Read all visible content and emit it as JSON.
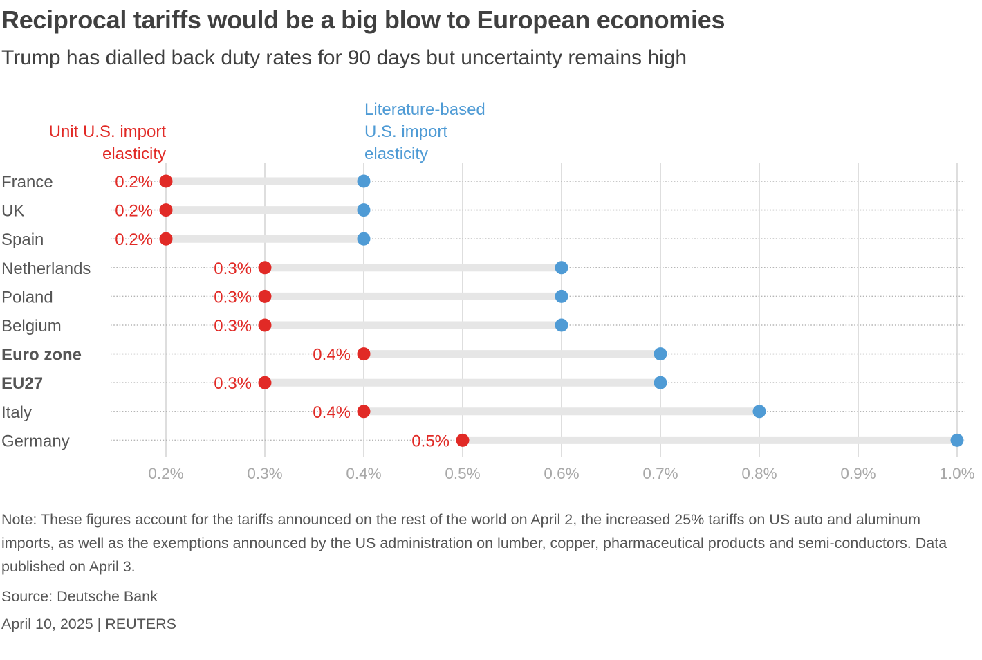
{
  "header": {
    "title": "Reciprocal tariffs would be a big blow to European economies",
    "subtitle": "Trump has dialled back duty rates for 90 days but uncertainty remains high"
  },
  "colors": {
    "unit": "#e12a26",
    "literature": "#4f9bd5",
    "range_band": "#e6e6e6",
    "gridline": "#c8c8c8",
    "row_dots": "#b5b5b5",
    "tick_text": "#a8a8a8",
    "label_text": "#555555"
  },
  "chart_data": {
    "type": "dumbbell",
    "x_axis": {
      "ticks": [
        0.2,
        0.3,
        0.4,
        0.5,
        0.6,
        0.7,
        0.8,
        0.9,
        1.0
      ],
      "tick_labels": [
        "0.2%",
        "0.3%",
        "0.4%",
        "0.5%",
        "0.6%",
        "0.7%",
        "0.8%",
        "0.9%",
        "1.0%"
      ],
      "xlim": [
        0.2,
        1.0
      ],
      "grid": true
    },
    "categories": [
      "France",
      "UK",
      "Spain",
      "Netherlands",
      "Poland",
      "Belgium",
      "Euro zone",
      "EU27",
      "Italy",
      "Germany"
    ],
    "bold_categories": [
      "Euro zone",
      "EU27"
    ],
    "series": [
      {
        "name": "Unit U.S. import elasticity",
        "label_lines": [
          "Unit U.S. import",
          "elasticity"
        ],
        "values": [
          0.2,
          0.2,
          0.2,
          0.3,
          0.3,
          0.3,
          0.4,
          0.3,
          0.4,
          0.5
        ],
        "value_labels": [
          "0.2%",
          "0.2%",
          "0.2%",
          "0.3%",
          "0.3%",
          "0.3%",
          "0.4%",
          "0.3%",
          "0.4%",
          "0.5%"
        ]
      },
      {
        "name": "Literature-based U.S. import elasticity",
        "label_lines": [
          "Literature-based",
          "U.S. import",
          "elasticity"
        ],
        "values": [
          0.4,
          0.4,
          0.4,
          0.6,
          0.6,
          0.6,
          0.7,
          0.7,
          0.8,
          1.0
        ]
      }
    ]
  },
  "footer": {
    "note": "Note: These figures account for the tariffs announced on the rest of the world on April 2, the increased 25% tariffs on US auto and aluminum imports, as well as the exemptions announced by the US administration on lumber, copper, pharmaceutical products and semi-conductors. Data published on April 3.",
    "source": "Source: Deutsche Bank",
    "dateline": "April 10, 2025 | REUTERS"
  }
}
